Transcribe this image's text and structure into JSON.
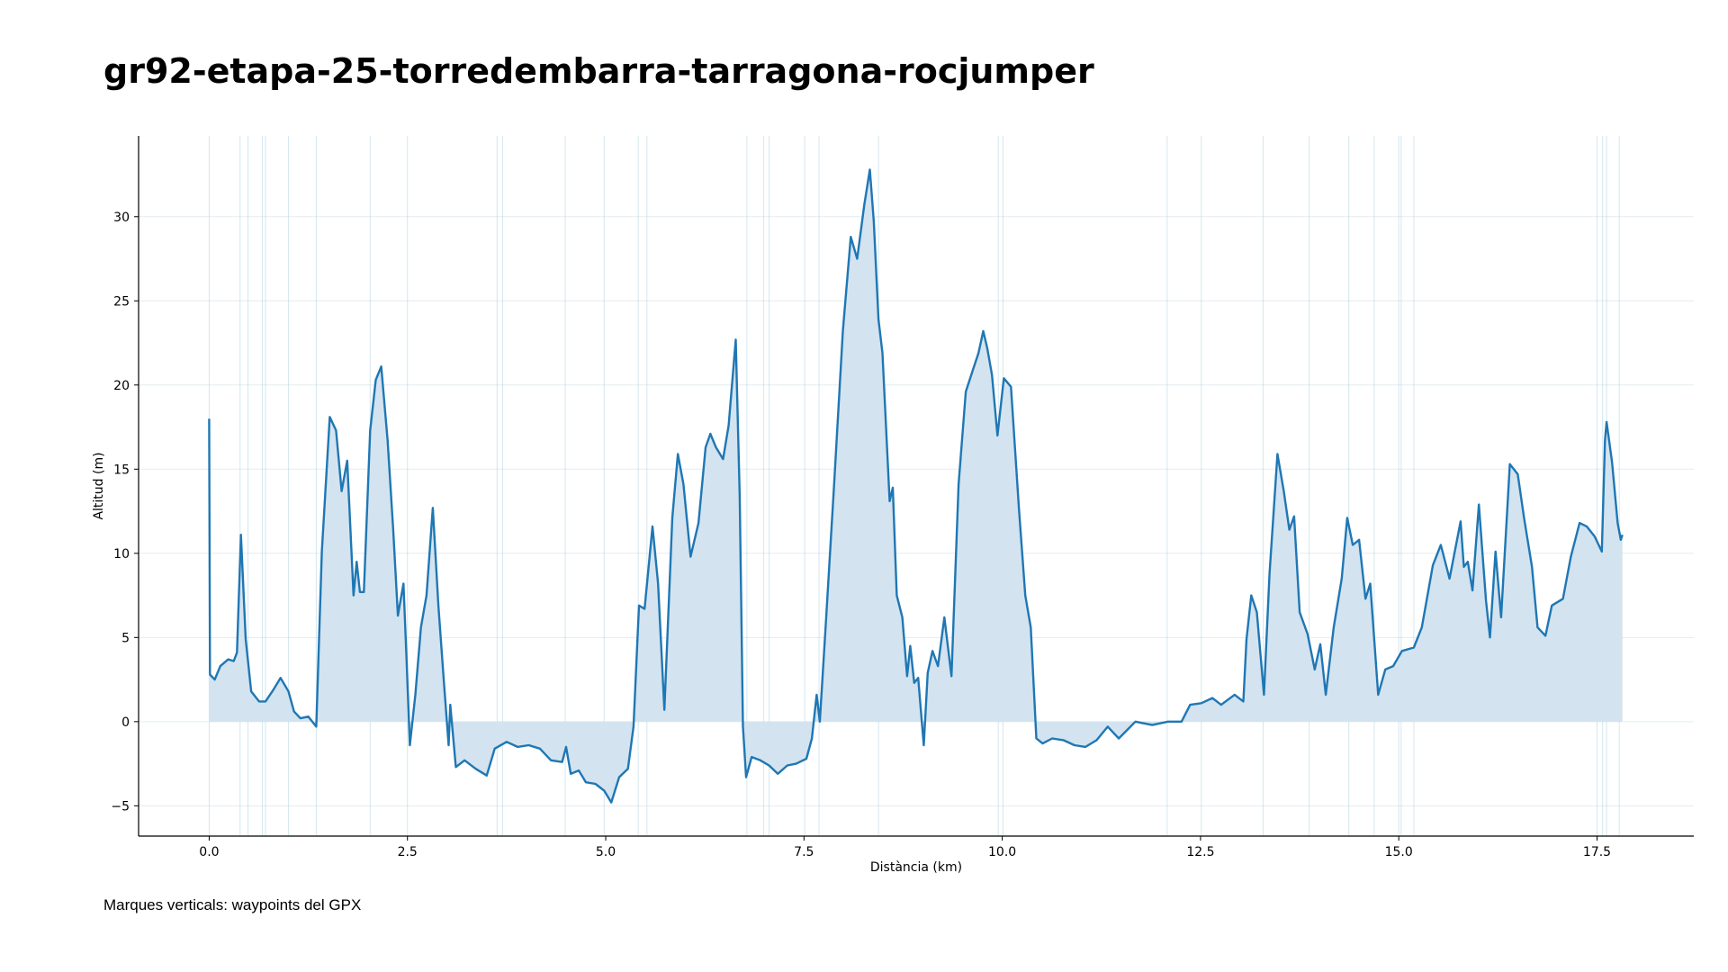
{
  "chart_data": {
    "type": "line",
    "title": "gr92-etapa-25-torredembarra-tarragona-rocjumper",
    "xlabel": "Distància (km)",
    "ylabel": "Altitud (m)",
    "footnote": "Marques verticals: waypoints del GPX",
    "x": [
      0,
      0.01,
      0.07,
      0.14,
      0.24,
      0.31,
      0.35,
      0.4,
      0.46,
      0.53,
      0.63,
      0.71,
      0.81,
      0.9,
      1.0,
      1.07,
      1.15,
      1.25,
      1.35,
      1.42,
      1.52,
      1.6,
      1.67,
      1.74,
      1.82,
      1.86,
      1.9,
      1.95,
      2.03,
      2.1,
      2.17,
      2.25,
      2.32,
      2.38,
      2.45,
      2.49,
      2.53,
      2.6,
      2.67,
      2.74,
      2.82,
      2.89,
      2.96,
      3.02,
      3.04,
      3.11,
      3.22,
      3.36,
      3.5,
      3.6,
      3.75,
      3.89,
      4.03,
      4.17,
      4.31,
      4.45,
      4.5,
      4.56,
      4.66,
      4.75,
      4.87,
      4.98,
      5.07,
      5.17,
      5.28,
      5.35,
      5.42,
      5.49,
      5.59,
      5.66,
      5.74,
      5.84,
      5.91,
      5.98,
      6.07,
      6.17,
      6.26,
      6.32,
      6.39,
      6.48,
      6.55,
      6.64,
      6.69,
      6.73,
      6.77,
      6.84,
      6.95,
      7.06,
      7.17,
      7.29,
      7.4,
      7.53,
      7.6,
      7.66,
      7.7,
      7.78,
      7.88,
      7.99,
      8.09,
      8.17,
      8.26,
      8.33,
      8.38,
      8.44,
      8.49,
      8.58,
      8.62,
      8.67,
      8.74,
      8.8,
      8.84,
      8.89,
      8.94,
      9.01,
      9.06,
      9.12,
      9.19,
      9.27,
      9.36,
      9.45,
      9.54,
      9.63,
      9.7,
      9.76,
      9.81,
      9.87,
      9.94,
      10.02,
      10.11,
      10.21,
      10.29,
      10.36,
      10.43,
      10.51,
      10.63,
      10.77,
      10.91,
      11.05,
      11.19,
      11.33,
      11.47,
      11.68,
      11.89,
      12.09,
      12.26,
      12.37,
      12.51,
      12.65,
      12.76,
      12.93,
      13.04,
      13.08,
      13.14,
      13.21,
      13.3,
      13.37,
      13.47,
      13.55,
      13.62,
      13.68,
      13.75,
      13.85,
      13.94,
      14.01,
      14.08,
      14.18,
      14.28,
      14.35,
      14.42,
      14.5,
      14.58,
      14.64,
      14.74,
      14.83,
      14.93,
      15.04,
      15.19,
      15.29,
      15.43,
      15.53,
      15.64,
      15.78,
      15.82,
      15.87,
      15.93,
      16.01,
      16.1,
      16.15,
      16.22,
      16.29,
      16.4,
      16.5,
      16.58,
      16.68,
      16.75,
      16.85,
      16.93,
      17.07,
      17.17,
      17.28,
      17.37,
      17.47,
      17.56,
      17.6,
      17.62,
      17.69,
      17.76,
      17.8,
      17.82
    ],
    "series": [
      {
        "color": "#1f77b4",
        "fill": "#d3e3f0",
        "values": [
          18.0,
          2.8,
          2.5,
          3.3,
          3.7,
          3.6,
          4.1,
          11.1,
          4.9,
          1.8,
          1.2,
          1.2,
          1.9,
          2.6,
          1.8,
          0.6,
          0.2,
          0.3,
          -0.3,
          10.1,
          18.1,
          17.3,
          13.7,
          15.5,
          7.5,
          9.5,
          7.7,
          7.7,
          17.3,
          20.3,
          21.1,
          16.7,
          11.4,
          6.3,
          8.2,
          3.6,
          -1.4,
          1.6,
          5.6,
          7.5,
          12.7,
          6.9,
          2.3,
          -1.4,
          1.0,
          -2.7,
          -2.3,
          -2.8,
          -3.2,
          -1.6,
          -1.2,
          -1.5,
          -1.4,
          -1.6,
          -2.3,
          -2.4,
          -1.5,
          -3.1,
          -2.9,
          -3.6,
          -3.7,
          -4.1,
          -4.8,
          -3.3,
          -2.8,
          -0.3,
          6.9,
          6.7,
          11.6,
          8.2,
          0.7,
          12.1,
          15.9,
          14.1,
          9.8,
          11.8,
          16.3,
          17.1,
          16.3,
          15.6,
          17.6,
          22.7,
          13.4,
          -0.3,
          -3.3,
          -2.1,
          -2.3,
          -2.6,
          -3.1,
          -2.6,
          -2.5,
          -2.2,
          -1.0,
          1.6,
          0,
          6.2,
          14.1,
          23.2,
          28.8,
          27.5,
          30.7,
          32.8,
          29.7,
          23.9,
          21.9,
          13.1,
          13.9,
          7.5,
          6.2,
          2.7,
          4.5,
          2.3,
          2.6,
          -1.4,
          2.9,
          4.2,
          3.3,
          6.2,
          2.7,
          14.1,
          19.6,
          20.9,
          21.9,
          23.2,
          22.2,
          20.6,
          17.0,
          20.4,
          19.9,
          12.7,
          7.5,
          5.6,
          -1.0,
          -1.3,
          -1.0,
          -1.1,
          -1.4,
          -1.5,
          -1.1,
          -0.3,
          -1.0,
          0,
          -0.2,
          0,
          0,
          1.0,
          1.1,
          1.4,
          1.0,
          1.6,
          1.2,
          4.9,
          7.5,
          6.5,
          1.6,
          8.8,
          15.9,
          13.7,
          11.4,
          12.2,
          6.5,
          5.2,
          3.1,
          4.6,
          1.6,
          5.6,
          8.5,
          12.1,
          10.5,
          10.8,
          7.3,
          8.2,
          1.6,
          3.1,
          3.3,
          4.2,
          4.4,
          5.6,
          9.3,
          10.5,
          8.5,
          11.9,
          9.2,
          9.5,
          7.8,
          12.9,
          7.2,
          5.0,
          10.1,
          6.2,
          15.3,
          14.7,
          12.1,
          9.2,
          5.6,
          5.1,
          6.9,
          7.3,
          9.8,
          11.8,
          11.6,
          11.0,
          10.1,
          16.7,
          17.8,
          15.4,
          11.8,
          10.8,
          11.1
        ]
      }
    ],
    "waypoints": [
      0,
      0.39,
      0.49,
      0.67,
      0.71,
      1.0,
      1.35,
      2.03,
      2.5,
      3.63,
      3.7,
      4.49,
      4.98,
      5.41,
      5.52,
      6.78,
      6.99,
      7.06,
      7.51,
      7.69,
      8.44,
      9.95,
      10.01,
      12.08,
      12.51,
      13.29,
      13.87,
      14.37,
      14.69,
      15.0,
      15.03,
      15.19,
      17.5,
      17.57,
      17.62,
      17.78
    ],
    "waypoint_color": "#a9cfe0",
    "xlim": [
      -0.89,
      18.72
    ],
    "ylim": [
      -6.8,
      34.8
    ],
    "xticks": [
      {
        "value": 0,
        "label": "0.0"
      },
      2.5,
      {
        "value": 5,
        "label": "5.0"
      },
      7.5,
      {
        "value": 10,
        "label": "10.0"
      },
      12.5,
      {
        "value": 15,
        "label": "15.0"
      },
      17.5
    ],
    "yticks": [
      {
        "value": -5,
        "label": "−5"
      },
      0,
      5,
      10,
      15,
      20,
      25,
      30
    ],
    "grid": true
  }
}
